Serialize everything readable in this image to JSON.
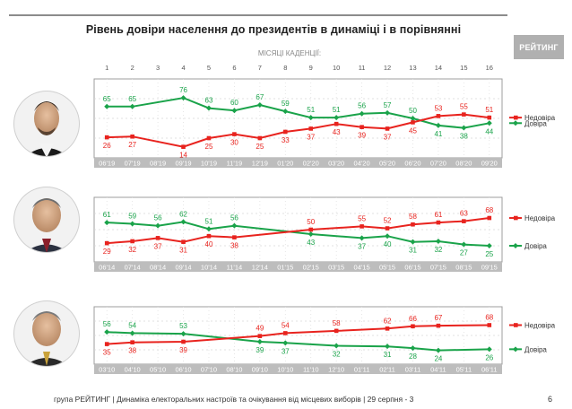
{
  "title": "Рівень довіри населення до президентів в динаміці і в порівнянні",
  "logo": "РЕЙТИНГ",
  "footer": "група РЕЙТИНГ | Динаміка електоральних настроїв та очікування від місцевих виборів | 29 серпня - 3",
  "page_number": "6",
  "month_axis_label": "МІСЯЦІ КАДЕНЦІЇ:",
  "colors": {
    "trust": "#1aa34a",
    "distrust": "#e8231e",
    "frame": "#9c9c9c",
    "tickbar": "#bdbdbd"
  },
  "chart_data": [
    {
      "type": "line",
      "months": [
        "1",
        "2",
        "3",
        "4",
        "5",
        "6",
        "7",
        "8",
        "9",
        "10",
        "11",
        "12",
        "13",
        "14",
        "15",
        "16"
      ],
      "categories": [
        "06'19",
        "07'19",
        "08'19",
        "09'19",
        "10'19",
        "11'19",
        "12'19",
        "01'20",
        "02'20",
        "03'20",
        "04'20",
        "05'20",
        "06'20",
        "07'20",
        "08'20",
        "09'20"
      ],
      "ylim": [
        0,
        100
      ],
      "legend_position": "right",
      "series": [
        {
          "name": "Довіра",
          "key": "trust",
          "values": [
            65,
            65,
            null,
            76,
            63,
            60,
            67,
            59,
            51,
            51,
            56,
            57,
            50,
            41,
            38,
            44
          ],
          "labels": [
            "65",
            "65",
            "",
            "76",
            "63",
            "60",
            "67",
            "59",
            "51",
            "51",
            "56",
            "57",
            "50",
            "41",
            "38",
            "44"
          ]
        },
        {
          "name": "Недовіра",
          "key": "distrust",
          "values": [
            26,
            27,
            null,
            14,
            25,
            30,
            25,
            33,
            37,
            43,
            39,
            37,
            45,
            53,
            55,
            51
          ],
          "labels": [
            "26",
            "27",
            "",
            "14",
            "25",
            "30",
            "25",
            "33",
            "37",
            "43",
            "39",
            "37",
            "45",
            "53",
            "55",
            "51"
          ]
        }
      ]
    },
    {
      "type": "line",
      "months": [],
      "categories": [
        "06'14",
        "07'14",
        "08'14",
        "09'14",
        "10'14",
        "11'14",
        "12'14",
        "01'15",
        "02'15",
        "03'15",
        "04'15",
        "05'15",
        "06'15",
        "07'15",
        "08'15",
        "09'15"
      ],
      "ylim": [
        0,
        100
      ],
      "legend_position": "right",
      "series": [
        {
          "name": "Довіра",
          "key": "trust",
          "values": [
            61,
            59,
            56,
            62,
            51,
            56,
            null,
            null,
            43,
            null,
            37,
            40,
            31,
            32,
            27,
            25
          ],
          "labels": [
            "61",
            "59",
            "56",
            "62",
            "51",
            "56",
            "",
            "",
            "43",
            "",
            "37",
            "40",
            "31",
            "32",
            "27",
            "25"
          ]
        },
        {
          "name": "Недовіра",
          "key": "distrust",
          "values": [
            29,
            32,
            37,
            31,
            40,
            38,
            null,
            null,
            50,
            null,
            55,
            52,
            58,
            61,
            63,
            68
          ],
          "labels": [
            "29",
            "32",
            "37",
            "31",
            "40",
            "38",
            "",
            "",
            "50",
            "",
            "55",
            "52",
            "58",
            "61",
            "63",
            "68"
          ]
        }
      ]
    },
    {
      "type": "line",
      "months": [],
      "categories": [
        "03'10",
        "04'10",
        "05'10",
        "06'10",
        "07'10",
        "08'10",
        "09'10",
        "10'10",
        "11'10",
        "12'10",
        "01'11",
        "02'11",
        "03'11",
        "04'11",
        "05'11",
        "06'11"
      ],
      "ylim": [
        0,
        100
      ],
      "legend_position": "right",
      "series": [
        {
          "name": "Довіра",
          "key": "trust",
          "values": [
            56,
            54,
            null,
            53,
            null,
            null,
            39,
            37,
            null,
            32,
            null,
            31,
            28,
            24,
            null,
            26
          ],
          "labels": [
            "56",
            "54",
            "",
            "53",
            "",
            "",
            "39",
            "37",
            "",
            "32",
            "",
            "31",
            "28",
            "24",
            "",
            "26"
          ]
        },
        {
          "name": "Недовіра",
          "key": "distrust",
          "values": [
            35,
            38,
            null,
            39,
            null,
            null,
            49,
            54,
            null,
            58,
            null,
            62,
            66,
            67,
            null,
            68
          ],
          "labels": [
            "35",
            "38",
            "",
            "39",
            "",
            "",
            "49",
            "54",
            "",
            "58",
            "",
            "62",
            "66",
            "67",
            "",
            "68"
          ]
        }
      ]
    }
  ]
}
